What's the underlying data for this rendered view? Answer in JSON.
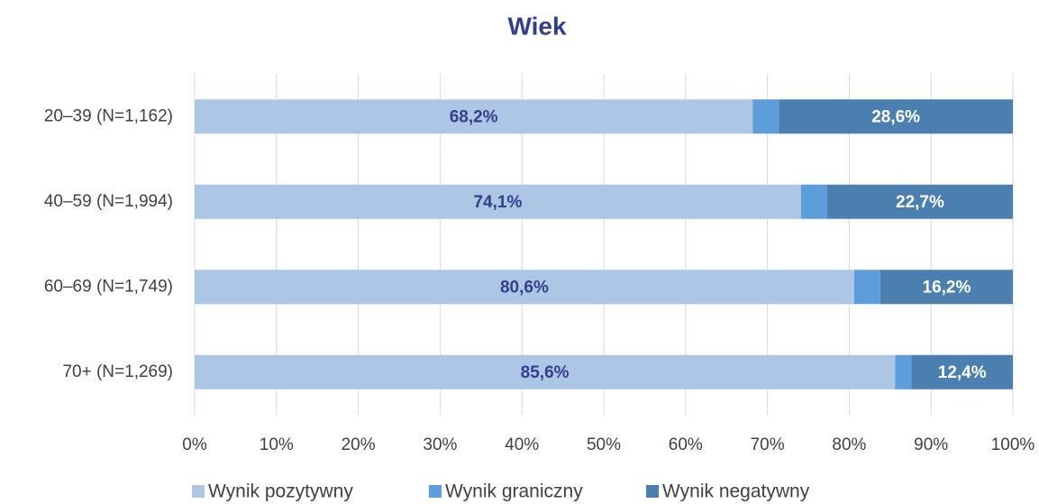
{
  "chart_data": {
    "type": "stacked_barh",
    "title": "Wiek",
    "categories": [
      "20–39 (N=1,162)",
      "40–59 (N=1,994)",
      "60–69 (N=1,749)",
      "70+ (N=1,269)"
    ],
    "series": [
      {
        "name": "Wynik pozytywny",
        "color": "#adc6e5",
        "values": [
          68.2,
          74.1,
          80.6,
          85.6
        ],
        "value_labels": [
          "68,2%",
          "74,1%",
          "80,6%",
          "85,6%"
        ]
      },
      {
        "name": "Wynik graniczny",
        "color": "#5e9ddb",
        "values": [
          3.2,
          3.2,
          3.2,
          2.0
        ]
      },
      {
        "name": "Wynik negatywny",
        "color": "#4a7fb0",
        "values": [
          28.6,
          22.7,
          16.2,
          12.4
        ],
        "value_labels": [
          "28,6%",
          "22,7%",
          "16,2%",
          "12,4%"
        ]
      }
    ],
    "xlim": [
      0,
      100
    ],
    "xticks": [
      {
        "value": 0,
        "label": "0%"
      },
      {
        "value": 10,
        "label": "10%"
      },
      {
        "value": 20,
        "label": "20%"
      },
      {
        "value": 30,
        "label": "30%"
      },
      {
        "value": 40,
        "label": "40%"
      },
      {
        "value": 50,
        "label": "50%"
      },
      {
        "value": 60,
        "label": "60%"
      },
      {
        "value": 70,
        "label": "70%"
      },
      {
        "value": 80,
        "label": "80%"
      },
      {
        "value": 90,
        "label": "90%"
      },
      {
        "value": 100,
        "label": "100%"
      }
    ],
    "grid": true,
    "legend": "bottom"
  }
}
